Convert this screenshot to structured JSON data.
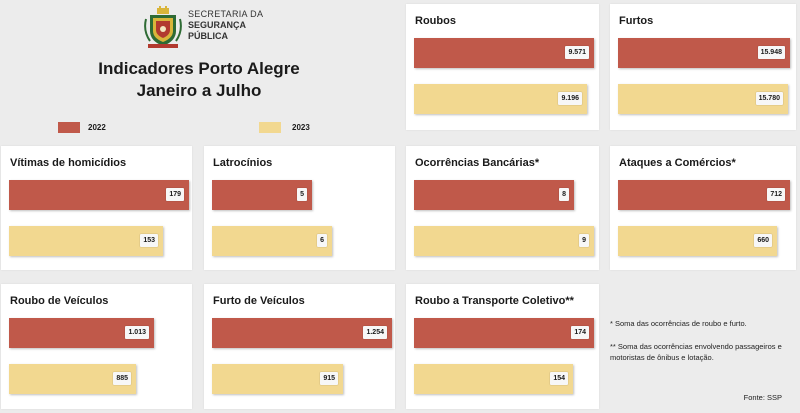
{
  "header": {
    "org_line1": "SECRETARIA DA",
    "org_line2": "SEGURANÇA",
    "org_line3": "PÚBLICA",
    "title_line1": "Indicadores Porto Alegre",
    "title_line2": "Janeiro a Julho"
  },
  "legend": [
    {
      "label": "2022",
      "color": "#c0594a"
    },
    {
      "label": "2023",
      "color": "#f2d890"
    }
  ],
  "chart_data": [
    {
      "type": "bar",
      "title": "Roubos",
      "categories": [
        "2022",
        "2023"
      ],
      "values": [
        9571,
        9196
      ],
      "labels": [
        "9.571",
        "9.196"
      ]
    },
    {
      "type": "bar",
      "title": "Furtos",
      "categories": [
        "2022",
        "2023"
      ],
      "values": [
        15948,
        15780
      ],
      "labels": [
        "15.948",
        "15.780"
      ]
    },
    {
      "type": "bar",
      "title": "Vítimas de homicídios",
      "categories": [
        "2022",
        "2023"
      ],
      "values": [
        179,
        153
      ],
      "labels": [
        "179",
        "153"
      ]
    },
    {
      "type": "bar",
      "title": "Latrocínios",
      "categories": [
        "2022",
        "2023"
      ],
      "values": [
        5,
        6
      ],
      "labels": [
        "5",
        "6"
      ]
    },
    {
      "type": "bar",
      "title": "Ocorrências Bancárias*",
      "categories": [
        "2022",
        "2023"
      ],
      "values": [
        8,
        9
      ],
      "labels": [
        "8",
        "9"
      ]
    },
    {
      "type": "bar",
      "title": "Ataques a Comércios*",
      "categories": [
        "2022",
        "2023"
      ],
      "values": [
        712,
        660
      ],
      "labels": [
        "712",
        "660"
      ]
    },
    {
      "type": "bar",
      "title": "Roubo de Veículos",
      "categories": [
        "2022",
        "2023"
      ],
      "values": [
        1013,
        885
      ],
      "labels": [
        "1.013",
        "885"
      ]
    },
    {
      "type": "bar",
      "title": "Furto de Veículos",
      "categories": [
        "2022",
        "2023"
      ],
      "values": [
        1254,
        915
      ],
      "labels": [
        "1.254",
        "915"
      ]
    },
    {
      "type": "bar",
      "title": "Roubo a Transporte Coletivo**",
      "categories": [
        "2022",
        "2023"
      ],
      "values": [
        174,
        154
      ],
      "labels": [
        "174",
        "154"
      ]
    }
  ],
  "notes": {
    "note1": "* Soma das ocorrências de roubo e furto.",
    "note2": "** Soma das ocorrências envolvendo passageiros e motoristas de ônibus e lotação.",
    "source": "Fonte: SSP"
  }
}
